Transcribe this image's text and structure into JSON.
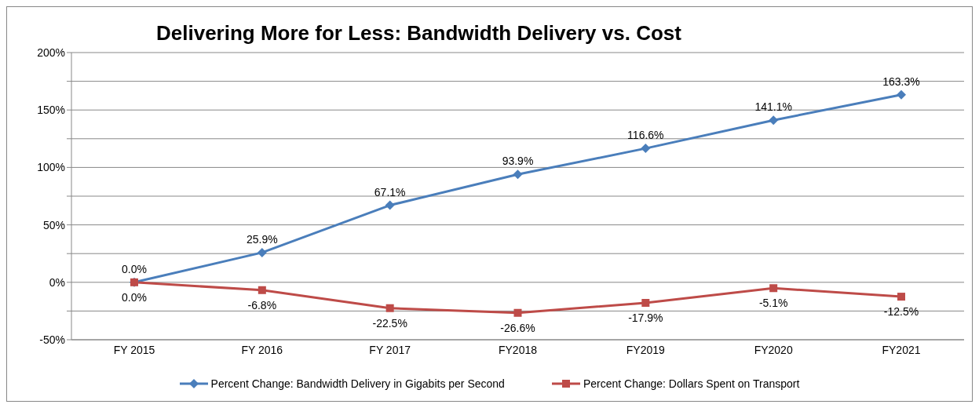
{
  "chart_data": {
    "type": "line",
    "title": "Delivering More for Less: Bandwidth Delivery vs. Cost",
    "categories": [
      "FY 2015",
      "FY 2016",
      "FY 2017",
      "FY2018",
      "FY2019",
      "FY2020",
      "FY2021"
    ],
    "series": [
      {
        "name": "Percent Change: Bandwidth Delivery in Gigabits per Second",
        "color": "#4a7ebb",
        "marker": "diamond",
        "values": [
          0.0,
          25.9,
          67.1,
          93.9,
          116.6,
          141.1,
          163.3
        ],
        "value_labels": [
          "0.0%",
          "25.9%",
          "67.1%",
          "93.9%",
          "116.6%",
          "141.1%",
          "163.3%"
        ]
      },
      {
        "name": "Percent Change: Dollars Spent on Transport",
        "color": "#be4b48",
        "marker": "square",
        "values": [
          0.0,
          -6.8,
          -22.5,
          -26.6,
          -17.9,
          -5.1,
          -12.5
        ],
        "value_labels": [
          "0.0%",
          "-6.8%",
          "-22.5%",
          "-26.6%",
          "-17.9%",
          "-5.1%",
          "-12.5%"
        ]
      }
    ],
    "ylim": [
      -50,
      200
    ],
    "yticks": [
      {
        "value": -50,
        "label": "-50%"
      },
      {
        "value": -25,
        "label": null
      },
      {
        "value": 0,
        "label": "0%"
      },
      {
        "value": 25,
        "label": null
      },
      {
        "value": 50,
        "label": "50%"
      },
      {
        "value": 75,
        "label": null
      },
      {
        "value": 100,
        "label": "100%"
      },
      {
        "value": 125,
        "label": null
      },
      {
        "value": 150,
        "label": "150%"
      },
      {
        "value": 175,
        "label": null
      },
      {
        "value": 200,
        "label": "200%"
      }
    ],
    "grid": "y",
    "legend": "bottom",
    "line_style": "solid"
  }
}
